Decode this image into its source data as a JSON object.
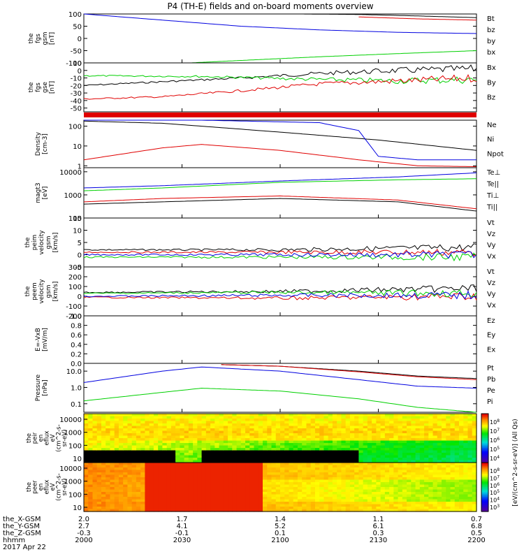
{
  "title": "P4 (TH-E) fields and on-board moments overview",
  "colors": {
    "black": "#000000",
    "red": "#e00000",
    "green": "#00d000",
    "blue": "#0000e0"
  },
  "chart_data": {
    "type": "line",
    "time_ticks": [
      "2000",
      "2030",
      "2100",
      "2130",
      "2200"
    ],
    "panels": [
      {
        "id": "fgs-gsm-nt",
        "ylabel": [
          "the",
          "fgs",
          "gsm",
          "[nT]"
        ],
        "ylim": [
          -100,
          100
        ],
        "ticks": [
          "100",
          "50",
          "0",
          "-50",
          "-100"
        ],
        "series": [
          {
            "name": "Bt",
            "color": "#000000",
            "points": [
              [
                0.55,
                100
              ],
              [
                0.7,
                98
              ],
              [
                0.85,
                92
              ],
              [
                1.0,
                85
              ]
            ]
          },
          {
            "name": "bz",
            "color": "#e00000",
            "points": [
              [
                0.7,
                88
              ],
              [
                0.85,
                80
              ],
              [
                1.0,
                75
              ]
            ]
          },
          {
            "name": "by",
            "color": "#00d000",
            "points": [
              [
                0.27,
                -100
              ],
              [
                0.4,
                -90
              ],
              [
                0.6,
                -75
              ],
              [
                0.8,
                -62
              ],
              [
                1.0,
                -50
              ]
            ]
          },
          {
            "name": "bx",
            "color": "#0000e0",
            "points": [
              [
                0.0,
                100
              ],
              [
                0.2,
                75
              ],
              [
                0.4,
                50
              ],
              [
                0.6,
                35
              ],
              [
                0.8,
                25
              ],
              [
                1.0,
                20
              ]
            ]
          }
        ]
      },
      {
        "id": "fgs-gse-nt",
        "ylabel": [
          "the",
          "fgs",
          "gse",
          "[nT]"
        ],
        "ylim": [
          -55,
          10
        ],
        "ticks": [
          "10",
          "0",
          "-10",
          "-20",
          "-30",
          "-40",
          "-50"
        ],
        "series": [
          {
            "name": "Bx",
            "color": "#000000",
            "points": [
              [
                0.0,
                -20
              ],
              [
                0.2,
                -15
              ],
              [
                0.4,
                -10
              ],
              [
                0.6,
                -4
              ],
              [
                0.8,
                0
              ],
              [
                1.0,
                2
              ]
            ]
          },
          {
            "name": "By",
            "color": "#00d000",
            "points": [
              [
                0.0,
                -7
              ],
              [
                0.3,
                -8
              ],
              [
                0.6,
                -12
              ],
              [
                0.8,
                -14
              ],
              [
                1.0,
                -12
              ]
            ]
          },
          {
            "name": "Bz",
            "color": "#e00000",
            "points": [
              [
                0.0,
                -38
              ],
              [
                0.2,
                -35
              ],
              [
                0.4,
                -27
              ],
              [
                0.6,
                -18
              ],
              [
                0.8,
                -14
              ],
              [
                1.0,
                -10
              ]
            ]
          }
        ]
      },
      {
        "id": "density",
        "ylabel": [
          "Density",
          "[cm-3]"
        ],
        "ylim": [
          0.8,
          200
        ],
        "log": true,
        "ticks": [
          "100",
          "10",
          "1"
        ],
        "series": [
          {
            "name": "Ne",
            "color": "#e00000",
            "points": [
              [
                0.0,
                2
              ],
              [
                0.2,
                8
              ],
              [
                0.3,
                12
              ],
              [
                0.5,
                6
              ],
              [
                0.7,
                2
              ],
              [
                0.85,
                1
              ],
              [
                1.0,
                0.9
              ]
            ]
          },
          {
            "name": "Ni",
            "color": "#000000",
            "points": [
              [
                0.0,
                180
              ],
              [
                0.2,
                140
              ],
              [
                0.5,
                50
              ],
              [
                0.75,
                20
              ],
              [
                1.0,
                6
              ]
            ]
          },
          {
            "name": "Npot",
            "color": "#0000e0",
            "points": [
              [
                0.0,
                200
              ],
              [
                0.3,
                200
              ],
              [
                0.6,
                150
              ],
              [
                0.7,
                60
              ],
              [
                0.75,
                3
              ],
              [
                0.85,
                2
              ],
              [
                1.0,
                2
              ]
            ]
          }
        ]
      },
      {
        "id": "magt3",
        "ylabel": [
          "magt3",
          "[eV]"
        ],
        "ylim": [
          100,
          15000
        ],
        "log": true,
        "ticks": [
          "10000",
          "1000",
          "100"
        ],
        "series": [
          {
            "name": "Te⊥",
            "color": "#e00000",
            "points": [
              [
                0.0,
                500
              ],
              [
                0.2,
                700
              ],
              [
                0.5,
                900
              ],
              [
                0.8,
                600
              ],
              [
                1.0,
                250
              ]
            ]
          },
          {
            "name": "Te||",
            "color": "#000000",
            "points": [
              [
                0.0,
                400
              ],
              [
                0.2,
                500
              ],
              [
                0.5,
                700
              ],
              [
                0.8,
                500
              ],
              [
                1.0,
                200
              ]
            ]
          },
          {
            "name": "Ti⊥",
            "color": "#0000e0",
            "points": [
              [
                0.0,
                2000
              ],
              [
                0.2,
                2500
              ],
              [
                0.5,
                4000
              ],
              [
                0.8,
                6000
              ],
              [
                1.0,
                9000
              ]
            ]
          },
          {
            "name": "Ti||",
            "color": "#00d000",
            "points": [
              [
                0.0,
                1500
              ],
              [
                0.2,
                2000
              ],
              [
                0.5,
                3500
              ],
              [
                0.8,
                4500
              ],
              [
                1.0,
                5000
              ]
            ]
          }
        ]
      },
      {
        "id": "peim-velocity",
        "ylabel": [
          "the",
          "peim",
          "velocity",
          "gsm",
          "[km/s]"
        ],
        "ylim": [
          -5,
          15
        ],
        "ticks": [
          "15",
          "10",
          "5",
          "0",
          "-5"
        ],
        "series": [
          {
            "name": "Vt",
            "color": "#000000",
            "points": [
              [
                0.0,
                2
              ],
              [
                0.5,
                2
              ],
              [
                1.0,
                3
              ]
            ]
          },
          {
            "name": "Vz",
            "color": "#e00000",
            "points": [
              [
                0.0,
                1
              ],
              [
                0.5,
                1
              ],
              [
                1.0,
                1
              ]
            ]
          },
          {
            "name": "Vy",
            "color": "#00d000",
            "points": [
              [
                0.0,
                -1
              ],
              [
                0.5,
                -1
              ],
              [
                1.0,
                -1
              ]
            ]
          },
          {
            "name": "Vx",
            "color": "#0000e0",
            "points": [
              [
                0.0,
                0
              ],
              [
                0.5,
                0
              ],
              [
                1.0,
                0
              ]
            ]
          }
        ]
      },
      {
        "id": "peem-velocity",
        "ylabel": [
          "the",
          "peem",
          "velocity",
          "gsm",
          "[km/s]"
        ],
        "ylim": [
          -200,
          300
        ],
        "ticks": [
          "300",
          "200",
          "100",
          "0",
          "-100",
          "-200"
        ],
        "series": [
          {
            "name": "Vt",
            "color": "#000000",
            "points": [
              [
                0.0,
                40
              ],
              [
                0.5,
                50
              ],
              [
                1.0,
                80
              ]
            ]
          },
          {
            "name": "Vz",
            "color": "#e00000",
            "points": [
              [
                0.0,
                -10
              ],
              [
                0.5,
                -20
              ],
              [
                1.0,
                0
              ]
            ]
          },
          {
            "name": "Vy",
            "color": "#00d000",
            "points": [
              [
                0.0,
                30
              ],
              [
                0.5,
                40
              ],
              [
                1.0,
                30
              ]
            ]
          },
          {
            "name": "Vx",
            "color": "#0000e0",
            "points": [
              [
                0.0,
                0
              ],
              [
                0.5,
                10
              ],
              [
                1.0,
                10
              ]
            ]
          }
        ]
      },
      {
        "id": "e-field",
        "ylabel": [
          "E=-VxB",
          "[mV/m]"
        ],
        "ylim": [
          0,
          1
        ],
        "ticks": [
          "1.0",
          "0.8",
          "0.6",
          "0.4",
          "0.2",
          "0.0"
        ],
        "series": [
          {
            "name": "Ez",
            "color": "#e00000",
            "points": []
          },
          {
            "name": "Ey",
            "color": "#00d000",
            "points": []
          },
          {
            "name": "Ex",
            "color": "#0000e0",
            "points": []
          }
        ]
      },
      {
        "id": "pressure",
        "ylabel": [
          "Pressure",
          "[nPa]"
        ],
        "ylim": [
          0.03,
          30
        ],
        "log": true,
        "ticks": [
          "10.0",
          "1.0",
          "0.1"
        ],
        "series": [
          {
            "name": "Pt",
            "color": "#000000",
            "points": [
              [
                0.35,
                25
              ],
              [
                0.5,
                20
              ],
              [
                0.7,
                10
              ],
              [
                0.85,
                5
              ],
              [
                1.0,
                3.5
              ]
            ]
          },
          {
            "name": "Pb",
            "color": "#e00000",
            "points": [
              [
                0.35,
                25
              ],
              [
                0.5,
                20
              ],
              [
                0.7,
                9
              ],
              [
                0.85,
                4.5
              ],
              [
                1.0,
                3
              ]
            ]
          },
          {
            "name": "Pe",
            "color": "#00d000",
            "points": [
              [
                0.0,
                0.15
              ],
              [
                0.2,
                0.5
              ],
              [
                0.3,
                0.9
              ],
              [
                0.5,
                0.6
              ],
              [
                0.7,
                0.2
              ],
              [
                0.85,
                0.06
              ],
              [
                1.0,
                0.03
              ]
            ]
          },
          {
            "name": "Pi",
            "color": "#0000e0",
            "points": [
              [
                0.0,
                2
              ],
              [
                0.2,
                10
              ],
              [
                0.3,
                18
              ],
              [
                0.5,
                10
              ],
              [
                0.7,
                3
              ],
              [
                0.85,
                1.2
              ],
              [
                1.0,
                0.9
              ]
            ]
          }
        ]
      }
    ],
    "spectrograms": [
      {
        "id": "peir",
        "ylabel": [
          "the",
          "peir",
          "en",
          "eflux",
          "eV",
          "(cm^2-s-",
          "sr-eV)"
        ],
        "ticks": [
          "10000",
          "1000",
          "100",
          "10"
        ]
      },
      {
        "id": "peer",
        "ylabel": [
          "the",
          "peer",
          "en",
          "eflux",
          "eV",
          "(cm^2-s-",
          "sr-eV)"
        ],
        "ticks": [
          "10000",
          "1000",
          "100",
          "10"
        ]
      }
    ],
    "colorbar": {
      "label": "[eV/(cm^2-s-sr-eV)] (All Qs)",
      "ticks_upper": [
        "10^8",
        "10^7",
        "10^6",
        "10^5",
        "10^4"
      ],
      "ticks_lower": [
        "10^8",
        "10^7",
        "10^6",
        "10^5",
        "10^4",
        "10^3"
      ]
    },
    "orbit_rows": [
      {
        "label": "the_X-GSM",
        "values": [
          "2.0",
          "1.7",
          "1.4",
          "1.1",
          "0.7"
        ]
      },
      {
        "label": "the_Y-GSM",
        "values": [
          "2.7",
          "4.1",
          "5.2",
          "6.1",
          "6.8"
        ]
      },
      {
        "label": "the_Z-GSM",
        "values": [
          "-0.3",
          "-0.1",
          "0.1",
          "0.3",
          "0.5"
        ]
      },
      {
        "label": "hhmm",
        "values": [
          "2000",
          "2030",
          "2100",
          "2130",
          "2200"
        ]
      }
    ],
    "date_label": "2017 Apr 22"
  }
}
